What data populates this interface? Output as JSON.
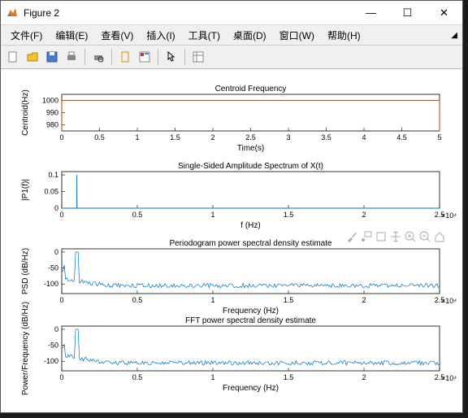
{
  "window": {
    "title": "Figure 2"
  },
  "menus": {
    "file": "文件(F)",
    "edit": "编辑(E)",
    "view": "查看(V)",
    "insert": "插入(I)",
    "tools": "工具(T)",
    "desktop": "桌面(D)",
    "window": "窗口(W)",
    "help": "帮助(H)"
  },
  "plots": {
    "axis_box_color": "#000000",
    "grid_color": "#e0e0e0",
    "bg": "#ffffff",
    "p1": {
      "title": "Centroid Frequency",
      "xlabel": "Time(s)",
      "ylabel": "Centroid(Hz)",
      "xlim": [
        0,
        5
      ],
      "xticks": [
        0,
        0.5,
        1,
        1.5,
        2,
        2.5,
        3,
        3.5,
        4,
        4.5,
        5
      ],
      "ylim": [
        975,
        1005
      ],
      "yticks": [
        980,
        990,
        1000
      ],
      "line_color": "#d95319",
      "line_y": 1000
    },
    "p2": {
      "title": "Single-Sided Amplitude Spectrum of X(t)",
      "xlabel": "f (Hz)",
      "ylabel": "|P1(f)|",
      "xlim": [
        0,
        2.5
      ],
      "xticks": [
        0,
        0.5,
        1,
        1.5,
        2,
        2.5
      ],
      "x_exp": "×10⁴",
      "ylim": [
        0,
        0.11
      ],
      "yticks": [
        0,
        0.05,
        0.1
      ],
      "line_color": "#0072bd",
      "peak_x": 0.1,
      "peak_y": 0.1
    },
    "p3": {
      "title": "Periodogram power spectral density estimate",
      "xlabel": "Frequency (Hz)",
      "ylabel": "PSD (dB/Hz)",
      "xlim": [
        0,
        2.5
      ],
      "xticks": [
        0,
        0.5,
        1,
        1.5,
        2,
        2.5
      ],
      "x_exp": "×10⁴",
      "ylim": [
        -130,
        10
      ],
      "yticks": [
        -100,
        -50,
        0
      ],
      "line_color": "#0072bd",
      "peak_x": 0.1,
      "peak_y": 0,
      "floor": -105,
      "noise": 14
    },
    "p4": {
      "title": "FFT power spectral density estimate",
      "xlabel": "Frequency (Hz)",
      "ylabel": "Power/Frequency (dB/Hz)",
      "xlim": [
        0,
        2.5
      ],
      "xticks": [
        0,
        0.5,
        1,
        1.5,
        2,
        2.5
      ],
      "x_exp": "×10⁴",
      "ylim": [
        -130,
        10
      ],
      "yticks": [
        -100,
        -50,
        0
      ],
      "line_color": "#0072bd",
      "peak_x": 0.1,
      "peak_y": 0,
      "floor": -105,
      "noise": 14
    }
  }
}
